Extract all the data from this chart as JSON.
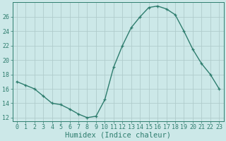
{
  "x": [
    0,
    1,
    2,
    3,
    4,
    5,
    6,
    7,
    8,
    9,
    10,
    11,
    12,
    13,
    14,
    15,
    16,
    17,
    18,
    19,
    20,
    21,
    22,
    23
  ],
  "y": [
    17,
    16.5,
    16,
    15,
    14,
    13.8,
    13.2,
    12.5,
    12,
    12.2,
    14.5,
    19,
    22,
    24.5,
    26,
    27.3,
    27.5,
    27.1,
    26.3,
    24,
    21.5,
    19.5,
    18,
    16
  ],
  "xlabel": "Humidex (Indice chaleur)",
  "xlim": [
    -0.5,
    23.5
  ],
  "ylim": [
    11.5,
    28
  ],
  "yticks": [
    12,
    14,
    16,
    18,
    20,
    22,
    24,
    26
  ],
  "xticks": [
    0,
    1,
    2,
    3,
    4,
    5,
    6,
    7,
    8,
    9,
    10,
    11,
    12,
    13,
    14,
    15,
    16,
    17,
    18,
    19,
    20,
    21,
    22,
    23
  ],
  "line_color": "#2e7d6e",
  "marker": "+",
  "bg_color": "#cce8e8",
  "grid_color": "#b0cccc",
  "axis_color": "#2e7d6e",
  "tick_fontsize": 6,
  "label_fontsize": 7.5
}
